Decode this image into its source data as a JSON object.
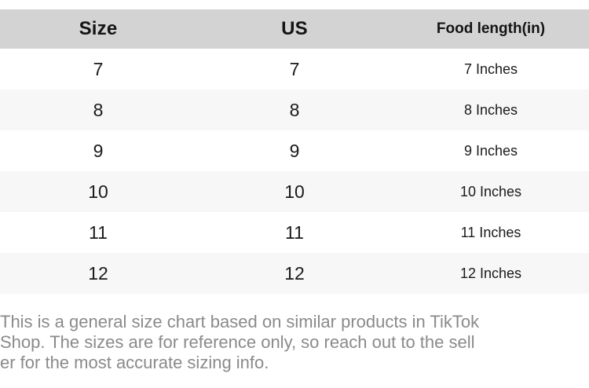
{
  "table": {
    "headers": [
      {
        "label": "Size"
      },
      {
        "label": "US"
      },
      {
        "label": "Food length(in)"
      }
    ],
    "rows": [
      {
        "size": "7",
        "us": "7",
        "length": "7 Inches"
      },
      {
        "size": "8",
        "us": "8",
        "length": "8 Inches"
      },
      {
        "size": "9",
        "us": "9",
        "length": "9 Inches"
      },
      {
        "size": "10",
        "us": "10",
        "length": "10 Inches"
      },
      {
        "size": "11",
        "us": "11",
        "length": "11 Inches"
      },
      {
        "size": "12",
        "us": "12",
        "length": "12 Inches"
      }
    ]
  },
  "footer": {
    "lines": [
      "This is a general size chart based on similar products in TikTok",
      "Shop. The sizes are for reference only, so reach out to the sell",
      "er for the most accurate sizing info."
    ]
  },
  "colors": {
    "header_bg": "#d3d3d3",
    "alt_row_bg": "#f7f7f7",
    "body_text": "#1a1a1a",
    "footer_text": "#8a8a8a"
  }
}
